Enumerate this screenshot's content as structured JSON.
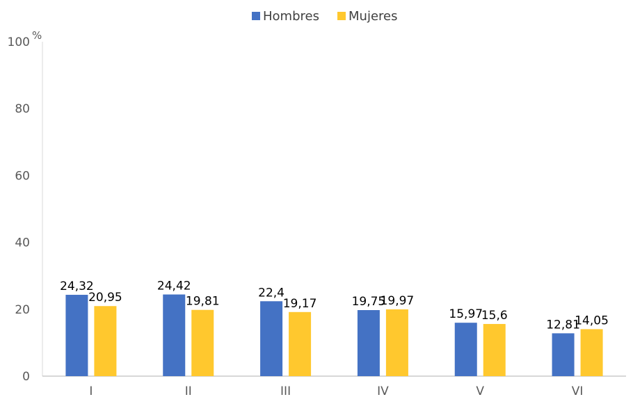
{
  "chart_data": {
    "type": "bar",
    "categories": [
      "I",
      "II",
      "III",
      "IV",
      "V",
      "VI"
    ],
    "series": [
      {
        "name": "Hombres",
        "values": [
          24.32,
          24.42,
          22.4,
          19.75,
          15.97,
          12.81
        ],
        "labels": [
          "24,32",
          "24,42",
          "22,4",
          "19,75",
          "15,97",
          "12,81"
        ],
        "color": "#4472C4"
      },
      {
        "name": "Mujeres",
        "values": [
          20.95,
          19.81,
          19.17,
          19.97,
          15.6,
          14.05
        ],
        "labels": [
          "20,95",
          "19,81",
          "19,17",
          "19,97",
          "15,6",
          "14,05"
        ],
        "color": "#FFC82E"
      }
    ],
    "yticks": [
      "0",
      "20",
      "40",
      "60",
      "80",
      "100"
    ],
    "yunit": "%",
    "ylim": [
      0,
      100
    ],
    "legend_position": "top-center",
    "grid": false
  }
}
